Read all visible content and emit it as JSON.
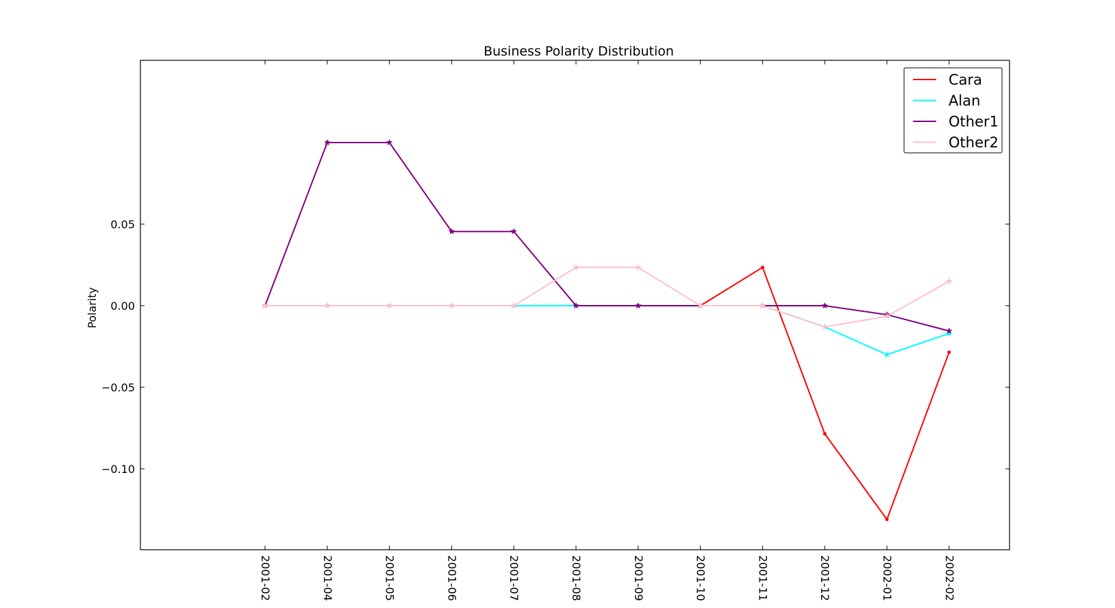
{
  "chart_data": {
    "type": "line",
    "title": "Business Polarity Distribution",
    "xlabel": "",
    "ylabel": "Polarity",
    "categories": [
      "2001-02",
      "2001-04",
      "2001-05",
      "2001-06",
      "2001-07",
      "2001-08",
      "2001-09",
      "2001-10",
      "2001-11",
      "2001-12",
      "2002-01",
      "2002-02"
    ],
    "yticks": [
      0.05,
      0.0,
      -0.05,
      -0.1
    ],
    "ytick_labels": [
      "0.05",
      "0.00",
      "−0.05",
      "−0.10"
    ],
    "ylim": [
      -0.15,
      0.15
    ],
    "grid": false,
    "legend_position": "top-right",
    "series": [
      {
        "name": "Cara",
        "color": "#ff0000",
        "marker": "dot",
        "values": [
          null,
          null,
          null,
          null,
          null,
          null,
          null,
          0.0,
          0.0235,
          -0.0785,
          -0.131,
          -0.0285
        ]
      },
      {
        "name": "Alan",
        "color": "#00ffff",
        "marker": "star",
        "values": [
          0.0,
          0.0,
          0.0,
          0.0,
          0.0,
          0.0,
          0.0,
          0.0,
          0.0,
          -0.013,
          -0.03,
          -0.017
        ]
      },
      {
        "name": "Other1",
        "color": "#800080",
        "marker": "star",
        "values": [
          0.0,
          0.1,
          0.1,
          0.0455,
          0.0455,
          0.0,
          0.0,
          0.0,
          0.0,
          0.0,
          -0.0055,
          -0.0155
        ]
      },
      {
        "name": "Other2",
        "color": "#ffc0cb",
        "marker": "star",
        "values": [
          0.0,
          0.0,
          0.0,
          0.0,
          0.0,
          0.0235,
          0.0235,
          0.0,
          0.0,
          -0.013,
          -0.0065,
          0.015
        ]
      }
    ]
  }
}
